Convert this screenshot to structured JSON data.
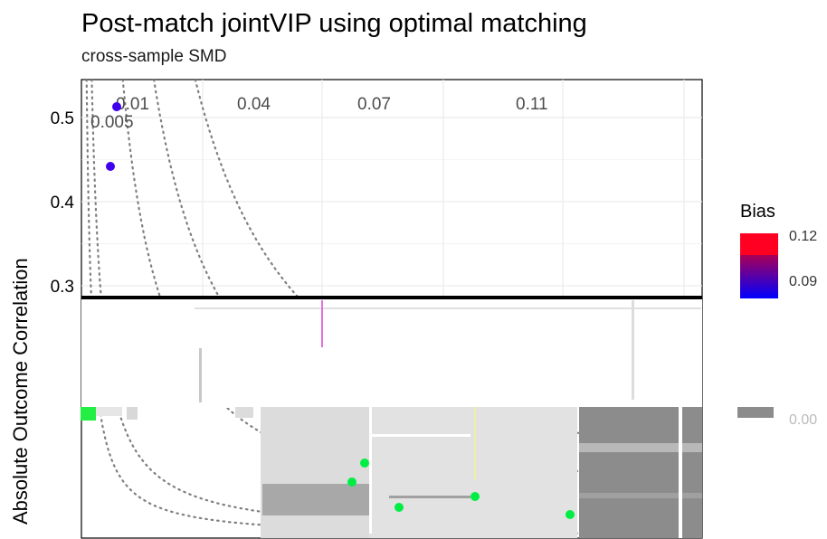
{
  "title": "Post-match jointVIP using optimal matching",
  "subtitle": "cross-sample SMD",
  "colors": {
    "low": "#0000ff",
    "high": "#ff0000",
    "contour": "#7f7f7f",
    "grid": "#ebebeb",
    "highlight_green": "#00ee44"
  },
  "chart_data": {
    "type": "scatter",
    "ylabel": "Absolute Outcome Correlation",
    "ytick_labels": [
      "0.3",
      "0.4",
      "0.5"
    ],
    "ylim": [
      0.0,
      0.545
    ],
    "xlim": [
      0.0,
      0.07
    ],
    "grid": true,
    "contour_labels": [
      "0.005",
      "0.01",
      "0.04",
      "0.07",
      "0.11"
    ],
    "contour_levels": [
      0.005,
      0.01,
      0.04,
      0.07,
      0.11
    ],
    "points": [
      {
        "x": 0.0027,
        "y": 0.513
      },
      {
        "x": 0.002,
        "y": 0.44
      },
      {
        "x": 0.0209,
        "y": 0.086
      },
      {
        "x": 0.0206,
        "y": 0.066
      },
      {
        "x": 0.0245,
        "y": 0.01
      },
      {
        "x": 0.0315,
        "y": 0.03
      },
      {
        "x": 0.0377,
        "y": 0.0
      }
    ],
    "legend": {
      "title": "Bias",
      "tick_labels": [
        "0.12",
        "0.09",
        "0.00"
      ],
      "placement": "right"
    }
  }
}
